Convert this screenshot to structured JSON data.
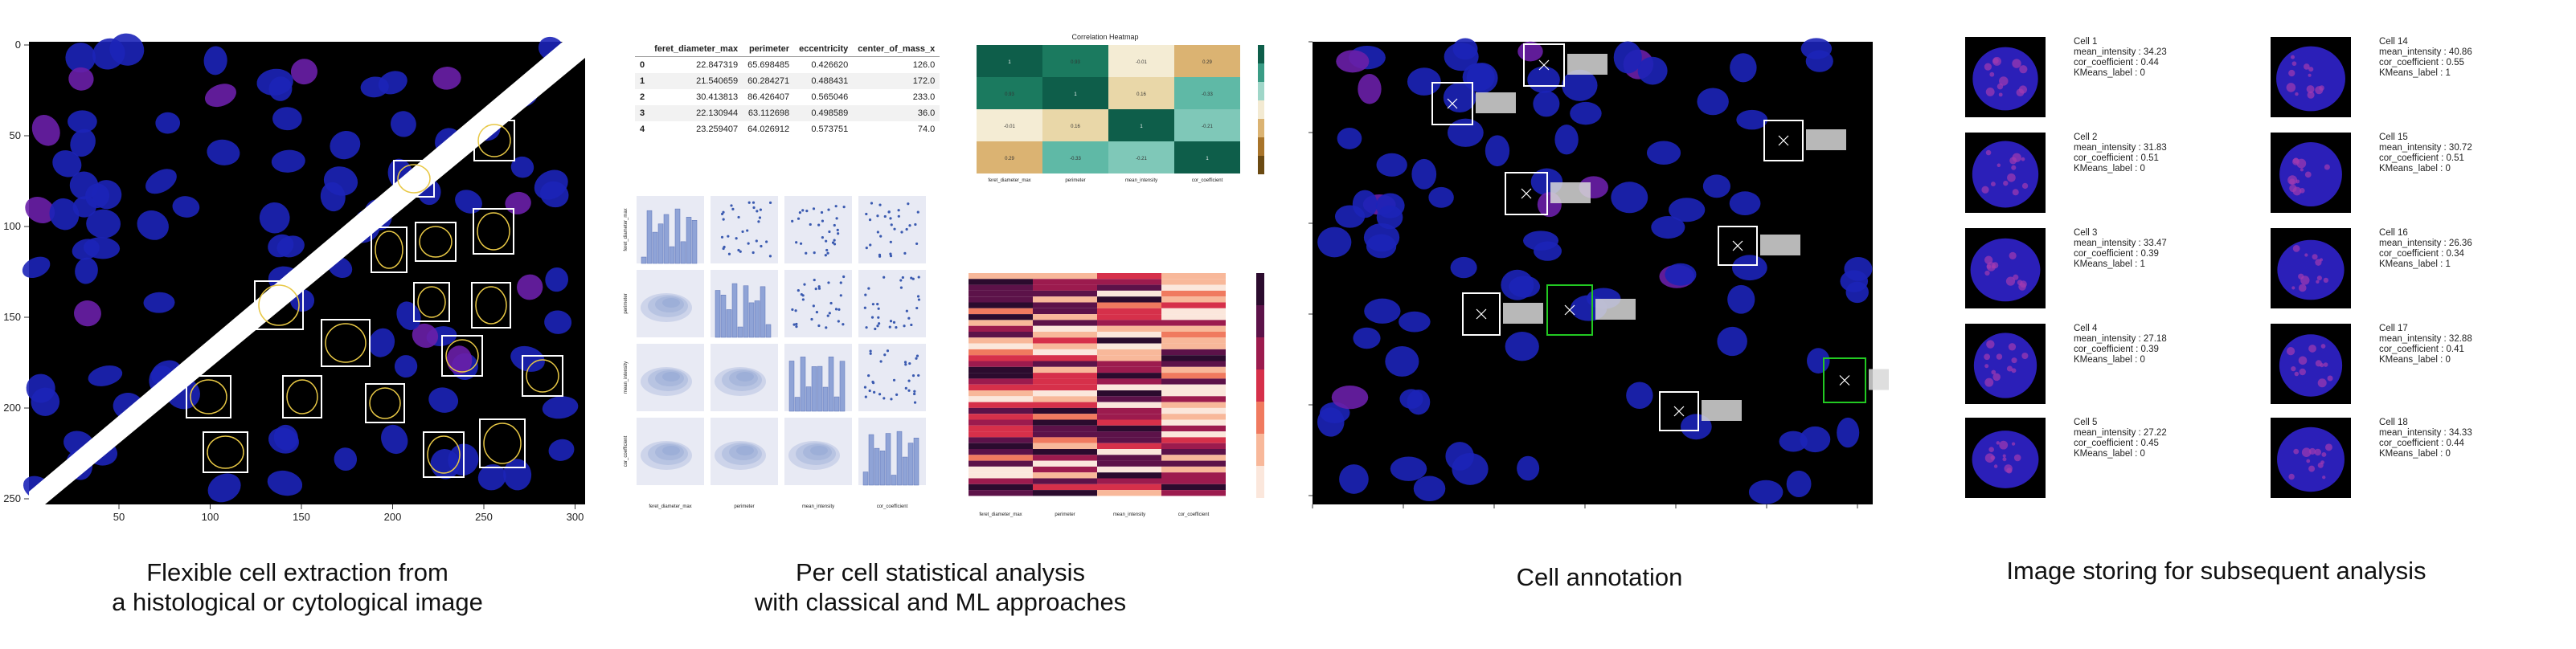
{
  "panel1": {
    "caption_line1": "Flexible cell extraction from",
    "caption_line2": "a histological or cytological image",
    "x_ticks": [
      "50",
      "100",
      "150",
      "200",
      "250",
      "300"
    ],
    "y_ticks": [
      "0",
      "50",
      "100",
      "150",
      "200",
      "250"
    ]
  },
  "panel2": {
    "caption_line1": "Per cell statistical analysis",
    "caption_line2": "with classical and ML approaches",
    "table": {
      "columns": [
        "",
        "feret_diameter_max",
        "perimeter",
        "eccentricity",
        "center_of_mass_x"
      ],
      "rows": [
        [
          "0",
          "22.847319",
          "65.698485",
          "0.426620",
          "126.0"
        ],
        [
          "1",
          "21.540659",
          "60.284271",
          "0.488431",
          "172.0"
        ],
        [
          "2",
          "30.413813",
          "86.426407",
          "0.565046",
          "233.0"
        ],
        [
          "3",
          "22.130944",
          "63.112698",
          "0.498589",
          "36.0"
        ],
        [
          "4",
          "23.259407",
          "64.026912",
          "0.573751",
          "74.0"
        ]
      ]
    },
    "heatmap_title": "Correlation Heatmap",
    "heatmap_labels": [
      "feret_diameter_max",
      "perimeter",
      "mean_intensity",
      "cor_coefficient"
    ],
    "pair_labels": [
      "feret_diameter_max",
      "perimeter",
      "mean_intensity",
      "cor_coefficient"
    ],
    "cluster_labels": [
      "feret_diameter_max",
      "perimeter",
      "mean_intensity",
      "cor_coefficient"
    ]
  },
  "panel3": {
    "caption": "Cell annotation"
  },
  "panel4": {
    "caption": "Image storing for subsequent analysis",
    "cells": [
      {
        "name": "Cell 1",
        "mean_intensity": "mean_intensity : 34.23",
        "cor": "cor_coefficient : 0.44",
        "kmeans": "KMeans_label : 0"
      },
      {
        "name": "Cell 2",
        "mean_intensity": "mean_intensity : 31.83",
        "cor": "cor_coefficient : 0.51",
        "kmeans": "KMeans_label : 0"
      },
      {
        "name": "Cell 3",
        "mean_intensity": "mean_intensity : 33.47",
        "cor": "cor_coefficient : 0.39",
        "kmeans": "KMeans_label : 1"
      },
      {
        "name": "Cell 4",
        "mean_intensity": "mean_intensity : 27.18",
        "cor": "cor_coefficient : 0.39",
        "kmeans": "KMeans_label : 0"
      },
      {
        "name": "Cell 5",
        "mean_intensity": "mean_intensity : 27.22",
        "cor": "cor_coefficient : 0.45",
        "kmeans": "KMeans_label : 0"
      },
      {
        "name": "Cell 14",
        "mean_intensity": "mean_intensity : 40.86",
        "cor": "cor_coefficient : 0.55",
        "kmeans": "KMeans_label : 1"
      },
      {
        "name": "Cell 15",
        "mean_intensity": "mean_intensity : 30.72",
        "cor": "cor_coefficient : 0.51",
        "kmeans": "KMeans_label : 0"
      },
      {
        "name": "Cell 16",
        "mean_intensity": "mean_intensity : 26.36",
        "cor": "cor_coefficient : 0.34",
        "kmeans": "KMeans_label : 1"
      },
      {
        "name": "Cell 17",
        "mean_intensity": "mean_intensity : 32.88",
        "cor": "cor_coefficient : 0.41",
        "kmeans": "KMeans_label : 0"
      },
      {
        "name": "Cell 18",
        "mean_intensity": "mean_intensity : 34.33",
        "cor": "cor_coefficient : 0.44",
        "kmeans": "KMeans_label : 0"
      }
    ]
  }
}
